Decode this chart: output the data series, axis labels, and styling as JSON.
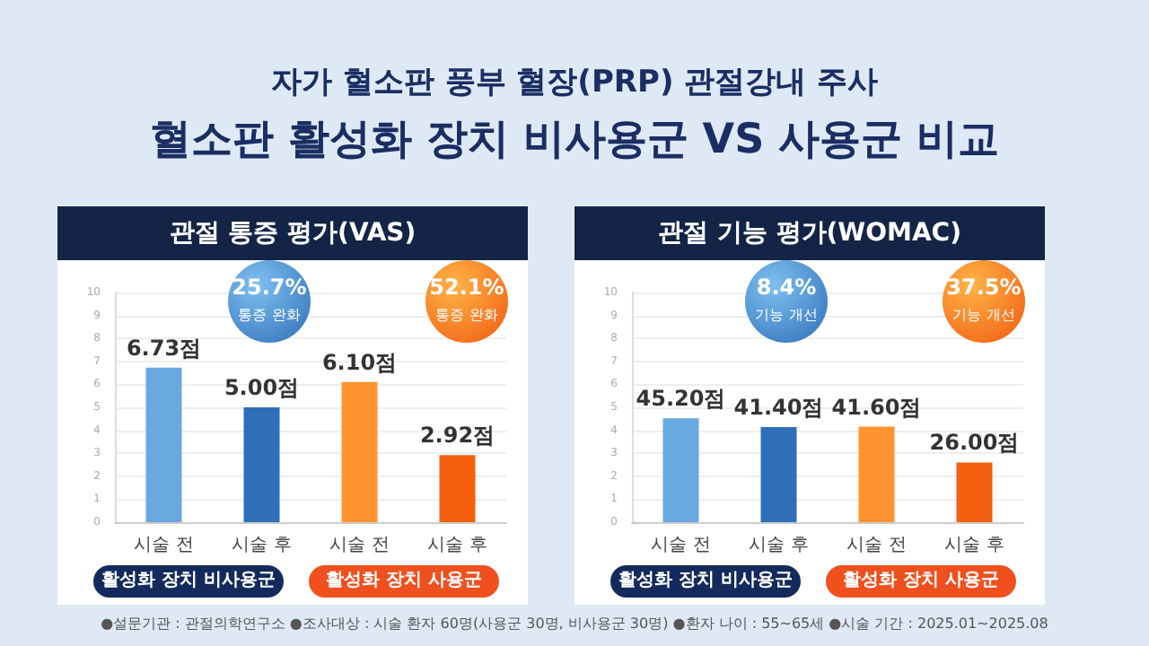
{
  "chart_data": [
    {
      "type": "bar",
      "title": "관절 통증 평가(VAS)",
      "categories": [
        "시술 전",
        "시술 후",
        "시술 전",
        "시술 후"
      ],
      "values": [
        6.73,
        5.0,
        6.1,
        2.92
      ],
      "colors": [
        "#6aa8e0",
        "#2f6fb8",
        "#ff9430",
        "#f55f10"
      ],
      "value_labels": [
        "6.73점",
        "5.00점",
        "6.10점",
        "2.92점"
      ],
      "ylim": [
        0,
        10
      ],
      "yticks": [
        0,
        1,
        2,
        3,
        4,
        5,
        6,
        7,
        8,
        9,
        10
      ],
      "grid": "y",
      "annotations": [
        "25.7%",
        "통증 완화",
        "52.1%",
        "통증 완화",
        "활성화 장치 비사용군",
        "활성화 장치 사용군",
        "자가 혈소판 풍부 혈장(PRP) 관절강내 주사",
        "혈소판 활성화 장치 비사용군 VS 사용군 비교"
      ]
    },
    {
      "type": "bar",
      "title": "관절 기능 평가(WOMAC)",
      "categories": [
        "시술 전",
        "시술 후",
        "시술 전",
        "시술 후"
      ],
      "series": [
        {
          "axis": "y2",
          "values": [
            45.2,
            41.4,
            41.6,
            26.0
          ],
          "value_labels": [
            "45.20점",
            "41.40점",
            "41.60점",
            "26.00점"
          ]
        }
      ],
      "colors": [
        "#6aa8e0",
        "#2f6fb8",
        "#ff9430",
        "#f55f10"
      ],
      "y2lim": [
        0,
        100
      ],
      "ylim": [
        0,
        10
      ],
      "yticks": [
        0,
        1,
        2,
        3,
        4,
        5,
        6,
        7,
        8,
        9,
        10
      ],
      "grid": "y",
      "annotations": [
        "8.4%",
        "기능 개선",
        "37.5%",
        "기능 개선",
        "활성화 장치 비사용군",
        "활성화 장치 사용군",
        "●설문기관 : 관절의학연구소 ●조사대상 : 시술 환자 60명(사용군 30명, 비사용군 30명) ●환자 나이 : 55~65세 ●시술 기간 : 2025.01~2025.08"
      ]
    }
  ]
}
